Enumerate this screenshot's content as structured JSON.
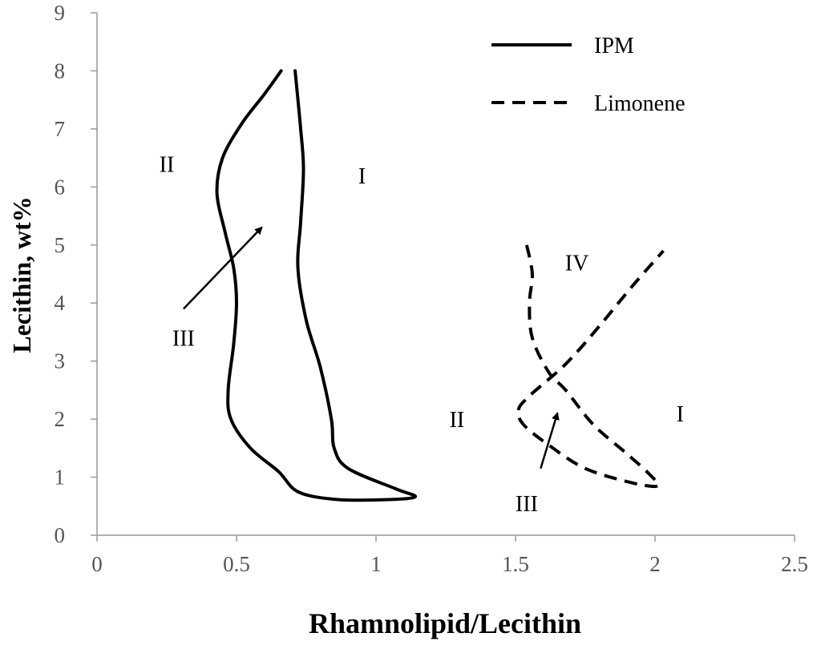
{
  "chart_data": {
    "type": "line",
    "title": "",
    "xlabel": "Rhamnolipid/Lecithin",
    "ylabel": "Lecithin, wt%",
    "xlim": [
      0,
      2.5
    ],
    "ylim": [
      0,
      9
    ],
    "xticks": [
      "0",
      "0.5",
      "1",
      "1.5",
      "2",
      "2.5"
    ],
    "yticks": [
      "0",
      "1",
      "2",
      "3",
      "4",
      "5",
      "6",
      "7",
      "8",
      "9"
    ],
    "grid": false,
    "legend_position": "top-right",
    "series": [
      {
        "name": "IPM",
        "style": "solid",
        "color": "#000000",
        "points": [
          [
            0.66,
            8.0
          ],
          [
            0.6,
            7.6
          ],
          [
            0.52,
            7.1
          ],
          [
            0.45,
            6.5
          ],
          [
            0.43,
            5.9
          ],
          [
            0.46,
            5.2
          ],
          [
            0.49,
            4.6
          ],
          [
            0.5,
            4.0
          ],
          [
            0.49,
            3.3
          ],
          [
            0.47,
            2.5
          ],
          [
            0.48,
            2.0
          ],
          [
            0.55,
            1.5
          ],
          [
            0.65,
            1.1
          ],
          [
            0.72,
            0.75
          ],
          [
            0.85,
            0.62
          ],
          [
            1.02,
            0.61
          ],
          [
            1.14,
            0.66
          ],
          [
            1.07,
            0.8
          ],
          [
            0.9,
            1.15
          ],
          [
            0.85,
            1.5
          ],
          [
            0.84,
            2.0
          ],
          [
            0.8,
            2.9
          ],
          [
            0.75,
            3.7
          ],
          [
            0.72,
            4.6
          ],
          [
            0.73,
            5.4
          ],
          [
            0.74,
            6.3
          ],
          [
            0.73,
            7.0
          ],
          [
            0.71,
            8.0
          ]
        ]
      },
      {
        "name": "Limonene",
        "style": "dashed",
        "color": "#000000",
        "points": [
          [
            1.54,
            5.0
          ],
          [
            1.56,
            4.5
          ],
          [
            1.55,
            4.0
          ],
          [
            1.56,
            3.4
          ],
          [
            1.62,
            2.8
          ],
          [
            1.68,
            2.5
          ],
          [
            1.78,
            1.9
          ],
          [
            1.9,
            1.4
          ],
          [
            1.98,
            1.05
          ],
          [
            2.01,
            0.85
          ],
          [
            1.92,
            0.9
          ],
          [
            1.75,
            1.15
          ],
          [
            1.62,
            1.55
          ],
          [
            1.53,
            1.9
          ],
          [
            1.51,
            2.15
          ],
          [
            1.55,
            2.4
          ],
          [
            1.68,
            2.95
          ],
          [
            1.8,
            3.6
          ],
          [
            1.92,
            4.3
          ],
          [
            2.03,
            4.9
          ]
        ]
      }
    ],
    "annotations": [
      {
        "text": "II",
        "x": 0.25,
        "y": 6.4
      },
      {
        "text": "I",
        "x": 0.95,
        "y": 6.2
      },
      {
        "text": "III",
        "x": 0.31,
        "y": 3.4
      },
      {
        "text": "IV",
        "x": 1.72,
        "y": 4.7
      },
      {
        "text": "II",
        "x": 1.29,
        "y": 2.0
      },
      {
        "text": "I",
        "x": 2.09,
        "y": 2.1
      },
      {
        "text": "III",
        "x": 1.54,
        "y": 0.55
      }
    ],
    "arrows": [
      {
        "from": [
          0.31,
          3.9
        ],
        "to": [
          0.59,
          5.3
        ]
      },
      {
        "from": [
          1.59,
          1.15
        ],
        "to": [
          1.65,
          2.1
        ]
      }
    ]
  }
}
